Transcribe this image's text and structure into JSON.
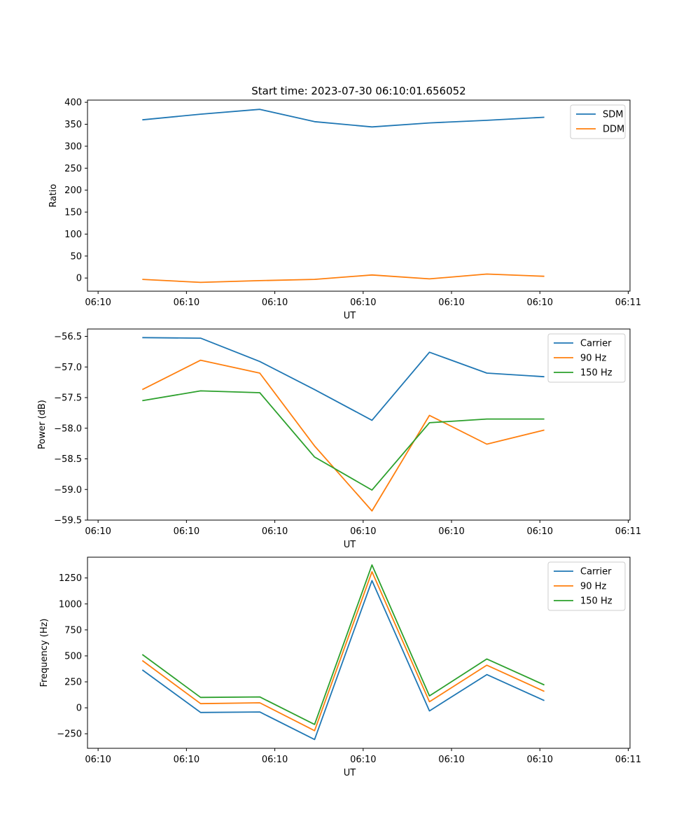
{
  "chart_data": [
    {
      "type": "line",
      "title": "Start time: 2023-07-30 06:10:01.656052",
      "xlabel": "UT",
      "ylabel": "Ratio",
      "x_ticks": [
        "06:10",
        "06:10",
        "06:10",
        "06:10",
        "06:10",
        "06:10",
        "06:11"
      ],
      "ylim": [
        -30,
        405
      ],
      "y_ticks": [
        "0",
        "50",
        "100",
        "150",
        "200",
        "250",
        "300",
        "350",
        "400"
      ],
      "y_tick_values": [
        0,
        50,
        100,
        150,
        200,
        250,
        300,
        350,
        400
      ],
      "legend_position": "top-right",
      "series": [
        {
          "name": "SDM",
          "color": "#1f77b4",
          "values": [
            360,
            373,
            384,
            356,
            344,
            353,
            359,
            366
          ]
        },
        {
          "name": "DDM",
          "color": "#ff7f0e",
          "values": [
            -3,
            -10,
            -6,
            -3,
            7,
            -2,
            9,
            4
          ]
        }
      ]
    },
    {
      "type": "line",
      "title": "",
      "xlabel": "UT",
      "ylabel": "Power (dB)",
      "x_ticks": [
        "06:10",
        "06:10",
        "06:10",
        "06:10",
        "06:10",
        "06:10",
        "06:11"
      ],
      "ylim": [
        -59.5,
        -56.38
      ],
      "y_ticks": [
        "−56.5",
        "−57.0",
        "−57.5",
        "−58.0",
        "−58.5",
        "−59.0",
        "−59.5"
      ],
      "y_tick_values": [
        -56.5,
        -57.0,
        -57.5,
        -58.0,
        -58.5,
        -59.0,
        -59.5
      ],
      "legend_position": "top-right",
      "series": [
        {
          "name": "Carrier",
          "color": "#1f77b4",
          "values": [
            -56.52,
            -56.53,
            -56.91,
            -57.37,
            -57.87,
            -56.76,
            -57.1,
            -57.16
          ]
        },
        {
          "name": "90 Hz",
          "color": "#ff7f0e",
          "values": [
            -57.37,
            -56.89,
            -57.1,
            -58.29,
            -59.35,
            -57.79,
            -58.26,
            -58.03
          ]
        },
        {
          "name": "150 Hz",
          "color": "#2ca02c",
          "values": [
            -57.55,
            -57.39,
            -57.42,
            -58.47,
            -59.01,
            -57.91,
            -57.85,
            -57.85
          ]
        }
      ]
    },
    {
      "type": "line",
      "title": "",
      "xlabel": "UT",
      "ylabel": "Frequency (Hz)",
      "x_ticks": [
        "06:10",
        "06:10",
        "06:10",
        "06:10",
        "06:10",
        "06:10",
        "06:11"
      ],
      "ylim": [
        -390,
        1450
      ],
      "y_ticks": [
        "−250",
        "0",
        "250",
        "500",
        "750",
        "1000",
        "1250"
      ],
      "y_tick_values": [
        -250,
        0,
        250,
        500,
        750,
        1000,
        1250
      ],
      "legend_position": "top-right",
      "series": [
        {
          "name": "Carrier",
          "color": "#1f77b4",
          "values": [
            365,
            -45,
            -40,
            -305,
            1225,
            -30,
            320,
            70
          ]
        },
        {
          "name": "90 Hz",
          "color": "#ff7f0e",
          "values": [
            455,
            40,
            48,
            -220,
            1310,
            58,
            410,
            158
          ]
        },
        {
          "name": "150 Hz",
          "color": "#2ca02c",
          "values": [
            513,
            100,
            105,
            -160,
            1375,
            115,
            470,
            220
          ]
        }
      ]
    }
  ],
  "x_positions": [
    0.5,
    1.16,
    1.83,
    2.45,
    3.1,
    3.75,
    4.4,
    5.05
  ],
  "x_range": [
    -0.12,
    6.02
  ]
}
